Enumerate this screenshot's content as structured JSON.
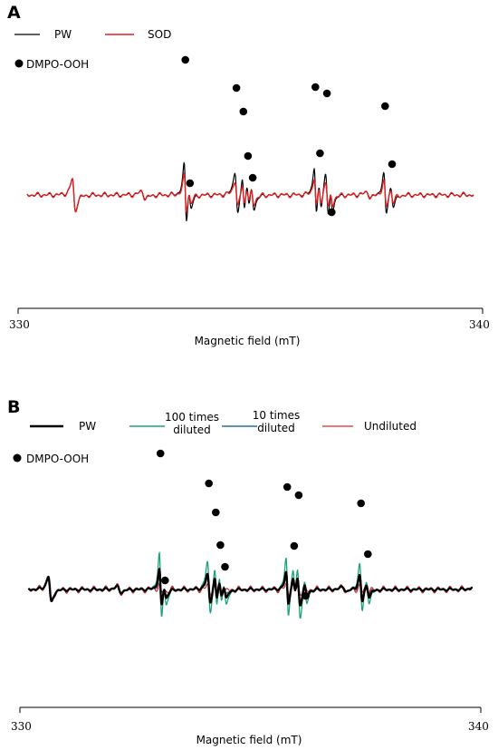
{
  "chart_data": [
    {
      "type": "line",
      "panel": "A",
      "xlabel": "Magnetic field (mT)",
      "xlim": [
        330,
        340
      ],
      "ticks": [
        "330",
        "340"
      ],
      "marker_label": "DMPO-OOH",
      "marker_positions": [
        333.6,
        333.7,
        334.7,
        334.85,
        334.95,
        335.05,
        336.4,
        336.5,
        336.65,
        336.75,
        337.9,
        338.05
      ],
      "series": [
        {
          "name": "PW",
          "color": "#000000",
          "scale": 1.0,
          "width": 1.2
        },
        {
          "name": "SOD",
          "color": "#e02020",
          "scale": 0.62,
          "width": 1.4
        }
      ]
    },
    {
      "type": "line",
      "panel": "B",
      "xlabel": "Magnetic field (mT)",
      "xlim": [
        330,
        340
      ],
      "ticks": [
        "330",
        "340"
      ],
      "marker_label": "DMPO-OOH",
      "marker_positions": [
        333.05,
        333.15,
        334.1,
        334.25,
        334.35,
        334.45,
        335.8,
        335.95,
        336.05,
        336.2,
        337.4,
        337.55
      ],
      "series": [
        {
          "name": "PW",
          "color": "#000000",
          "scale": 0.8,
          "width": 2.4
        },
        {
          "name": "100 times diluted",
          "color": "#1aa37a",
          "scale": 1.45,
          "width": 1.3
        },
        {
          "name": "10 times diluted",
          "color": "#2a6fa0",
          "scale": 0.55,
          "width": 1.3
        },
        {
          "name": "Undiluted",
          "color": "#d42a2a",
          "scale": 0.18,
          "width": 1.2
        }
      ]
    }
  ],
  "legend_A": {
    "pw": "PW",
    "sod": "SOD",
    "marker": "DMPO-OOH"
  },
  "legend_B": {
    "pw": "PW",
    "d100_line1": "100 times",
    "d100_line2": "diluted",
    "d10_line1": "10 times",
    "d10_line2": "diluted",
    "undiluted": "Undiluted",
    "marker": "DMPO-OOH"
  },
  "panels": {
    "a": "A",
    "b": "B"
  }
}
